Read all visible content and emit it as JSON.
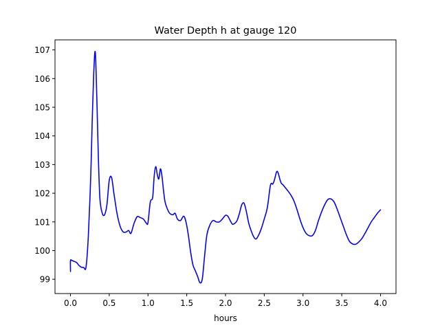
{
  "chart_data": {
    "type": "line",
    "title": "Water Depth h at gauge 120",
    "xlabel": "hours",
    "ylabel": "",
    "xlim": [
      -0.2,
      4.2
    ],
    "ylim": [
      98.5,
      107.35
    ],
    "xticks": [
      0.0,
      0.5,
      1.0,
      1.5,
      2.0,
      2.5,
      3.0,
      3.5,
      4.0
    ],
    "xtick_labels": [
      "0.0",
      "0.5",
      "1.0",
      "1.5",
      "2.0",
      "2.5",
      "3.0",
      "3.5",
      "4.0"
    ],
    "yticks": [
      99,
      100,
      101,
      102,
      103,
      104,
      105,
      106,
      107
    ],
    "ytick_labels": [
      "99",
      "100",
      "101",
      "102",
      "103",
      "104",
      "105",
      "106",
      "107"
    ],
    "grid": false,
    "series": [
      {
        "color": "#0000ff",
        "x": [
          0.0,
          0.0,
          0.02,
          0.05,
          0.08,
          0.11,
          0.14,
          0.17,
          0.2,
          0.23,
          0.26,
          0.28,
          0.3,
          0.32,
          0.34,
          0.36,
          0.38,
          0.41,
          0.44,
          0.47,
          0.5,
          0.53,
          0.56,
          0.6,
          0.64,
          0.68,
          0.72,
          0.75,
          0.78,
          0.82,
          0.86,
          0.9,
          0.94,
          0.98,
          1.0,
          1.03,
          1.06,
          1.08,
          1.1,
          1.12,
          1.14,
          1.16,
          1.18,
          1.2,
          1.22,
          1.25,
          1.28,
          1.32,
          1.35,
          1.38,
          1.42,
          1.46,
          1.49,
          1.52,
          1.55,
          1.58,
          1.61,
          1.64,
          1.67,
          1.7,
          1.73,
          1.76,
          1.8,
          1.84,
          1.88,
          1.92,
          1.96,
          2.0,
          2.03,
          2.06,
          2.09,
          2.12,
          2.15,
          2.18,
          2.21,
          2.24,
          2.27,
          2.3,
          2.33,
          2.36,
          2.39,
          2.42,
          2.46,
          2.5,
          2.54,
          2.58,
          2.61,
          2.63,
          2.66,
          2.68,
          2.7,
          2.72,
          2.74,
          2.77,
          2.8,
          2.84,
          2.88,
          2.92,
          2.96,
          3.0,
          3.04,
          3.08,
          3.12,
          3.16,
          3.2,
          3.24,
          3.28,
          3.32,
          3.36,
          3.4,
          3.44,
          3.48,
          3.52,
          3.56,
          3.6,
          3.64,
          3.68,
          3.72,
          3.76,
          3.8,
          3.84,
          3.88,
          3.92,
          3.96,
          4.0
        ],
        "y": [
          99.27,
          99.65,
          99.65,
          99.62,
          99.58,
          99.48,
          99.42,
          99.41,
          99.42,
          100.5,
          102.5,
          104.5,
          106.2,
          106.92,
          105.3,
          103.2,
          101.8,
          101.3,
          101.25,
          101.6,
          102.45,
          102.55,
          102.0,
          101.3,
          100.85,
          100.65,
          100.65,
          100.7,
          100.6,
          100.95,
          101.18,
          101.15,
          101.1,
          100.95,
          100.98,
          101.7,
          101.85,
          102.6,
          102.93,
          102.65,
          102.5,
          102.85,
          102.6,
          102.1,
          101.7,
          101.45,
          101.3,
          101.25,
          101.3,
          101.1,
          101.05,
          101.2,
          101.0,
          100.55,
          99.95,
          99.5,
          99.3,
          99.1,
          98.88,
          99.0,
          99.8,
          100.55,
          100.9,
          101.05,
          101.0,
          101.0,
          101.1,
          101.23,
          101.2,
          101.05,
          100.92,
          100.95,
          101.05,
          101.3,
          101.6,
          101.65,
          101.35,
          100.95,
          100.7,
          100.5,
          100.4,
          100.5,
          100.75,
          101.1,
          101.5,
          102.28,
          102.32,
          102.45,
          102.75,
          102.7,
          102.5,
          102.35,
          102.3,
          102.2,
          102.1,
          101.95,
          101.75,
          101.45,
          101.1,
          100.8,
          100.6,
          100.52,
          100.52,
          100.7,
          101.05,
          101.35,
          101.6,
          101.78,
          101.8,
          101.7,
          101.45,
          101.15,
          100.85,
          100.55,
          100.32,
          100.23,
          100.22,
          100.3,
          100.42,
          100.6,
          100.8,
          101.0,
          101.15,
          101.3,
          101.42
        ]
      }
    ]
  }
}
